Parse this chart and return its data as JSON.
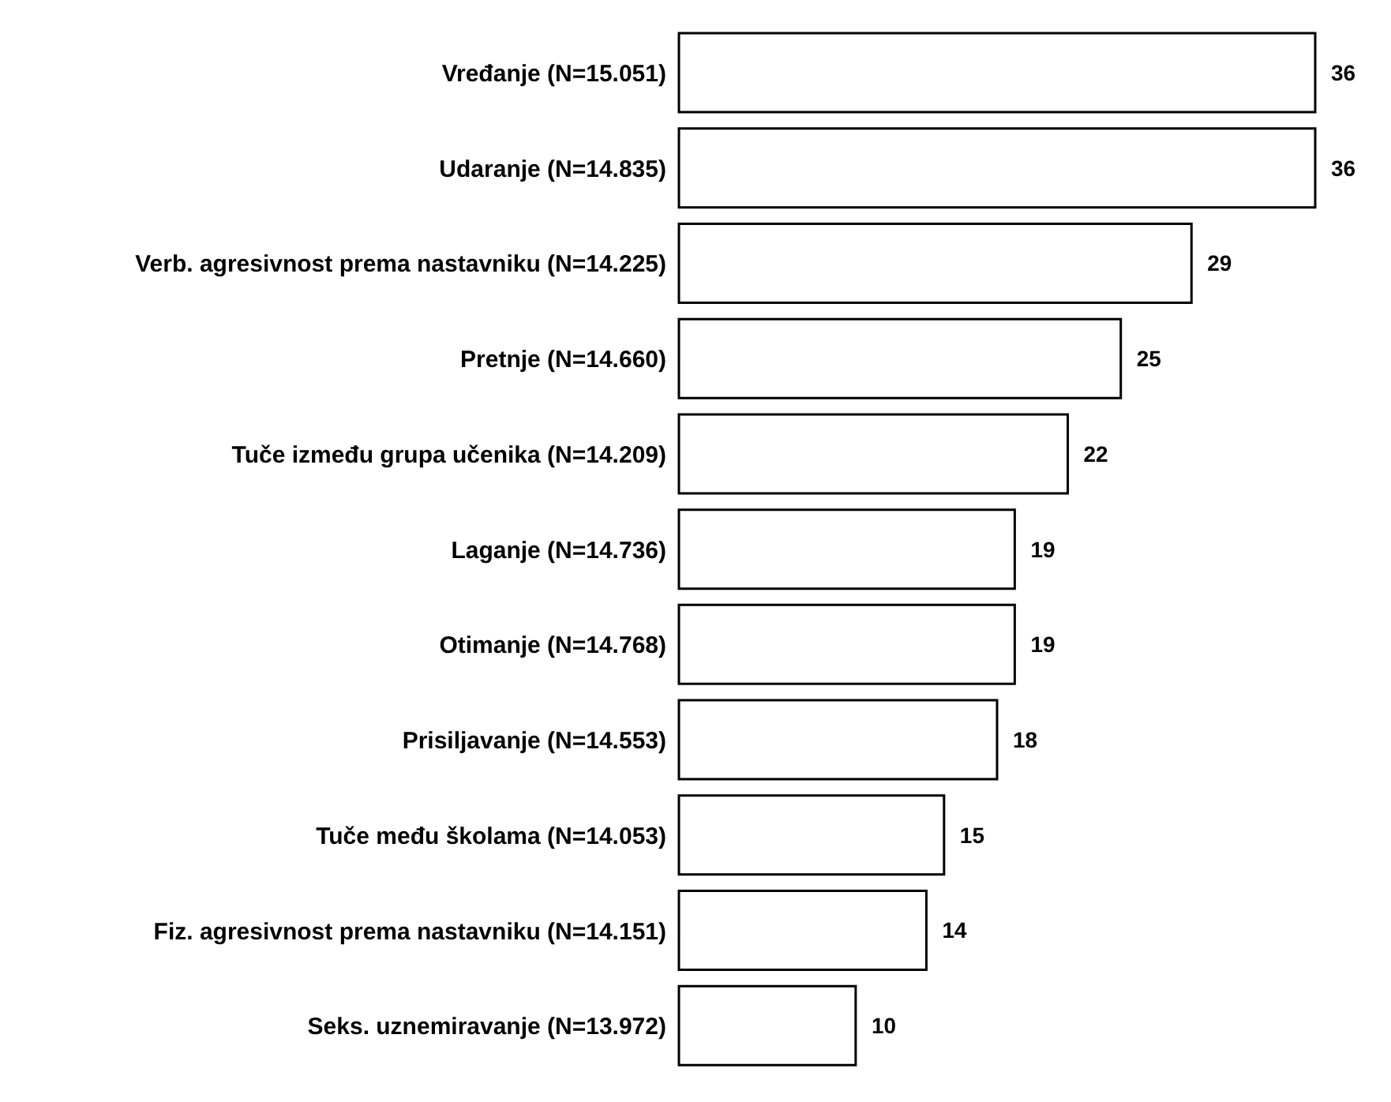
{
  "chart_data": {
    "type": "bar",
    "orientation": "horizontal",
    "categories": [
      "Vređanje (N=15.051)",
      "Udaranje (N=14.835)",
      "Verb. agresivnost prema nastavniku (N=14.225)",
      "Pretnje (N=14.660)",
      "Tuče između grupa učenika (N=14.209)",
      "Laganje (N=14.736)",
      "Otimanje (N=14.768)",
      "Prisiljavanje (N=14.553)",
      "Tuče među školama (N=14.053)",
      "Fiz. agresivnost prema nastavniku (N=14.151)",
      "Seks. uznemiravanje (N=13.972)"
    ],
    "values": [
      36,
      36,
      29,
      25,
      22,
      19,
      19,
      18,
      15,
      14,
      10
    ],
    "color": "#ffffff",
    "data_labels": true,
    "grid": false
  }
}
